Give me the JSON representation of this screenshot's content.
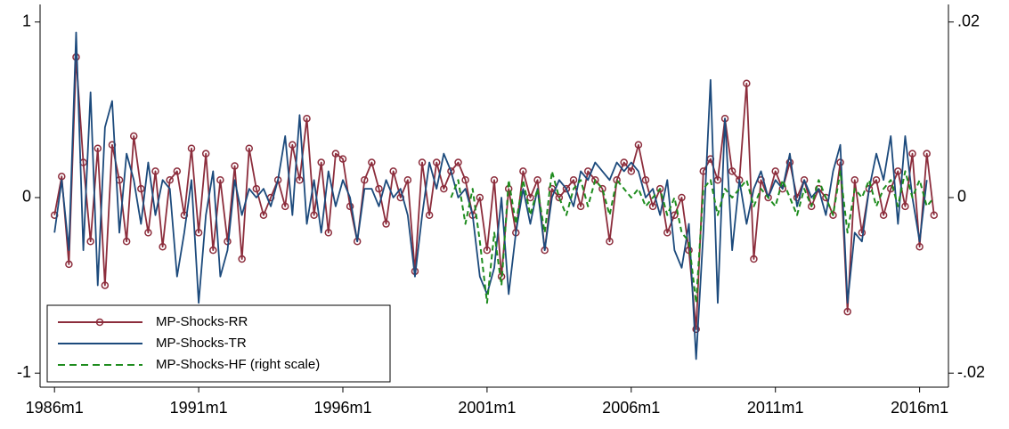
{
  "chart_data": {
    "type": "line",
    "x": [
      1986,
      1986.25,
      1986.5,
      1986.75,
      1987,
      1987.25,
      1987.5,
      1987.75,
      1988,
      1988.25,
      1988.5,
      1988.75,
      1989,
      1989.25,
      1989.5,
      1989.75,
      1990,
      1990.25,
      1990.5,
      1990.75,
      1991,
      1991.25,
      1991.5,
      1991.75,
      1992,
      1992.25,
      1992.5,
      1992.75,
      1993,
      1993.25,
      1993.5,
      1993.75,
      1994,
      1994.25,
      1994.5,
      1994.75,
      1995,
      1995.25,
      1995.5,
      1995.75,
      1996,
      1996.25,
      1996.5,
      1996.75,
      1997,
      1997.25,
      1997.5,
      1997.75,
      1998,
      1998.25,
      1998.5,
      1998.75,
      1999,
      1999.25,
      1999.5,
      1999.75,
      2000,
      2000.25,
      2000.5,
      2000.75,
      2001,
      2001.25,
      2001.5,
      2001.75,
      2002,
      2002.25,
      2002.5,
      2002.75,
      2003,
      2003.25,
      2003.5,
      2003.75,
      2004,
      2004.25,
      2004.5,
      2004.75,
      2005,
      2005.25,
      2005.5,
      2005.75,
      2006,
      2006.25,
      2006.5,
      2006.75,
      2007,
      2007.25,
      2007.5,
      2007.75,
      2008,
      2008.25,
      2008.5,
      2008.75,
      2009,
      2009.25,
      2009.5,
      2009.75,
      2010,
      2010.25,
      2010.5,
      2010.75,
      2011,
      2011.25,
      2011.5,
      2011.75,
      2012,
      2012.25,
      2012.5,
      2012.75,
      2013,
      2013.25,
      2013.5,
      2013.75,
      2014,
      2014.25,
      2014.5,
      2014.75,
      2015,
      2015.25,
      2015.5,
      2015.75,
      2016,
      2016.25,
      2016.5
    ],
    "series": [
      {
        "name": "MP-Shocks-RR",
        "color": "#8c2d3c",
        "marker": "circle",
        "axis": "y",
        "values": [
          -0.1,
          0.12,
          -0.38,
          0.8,
          0.2,
          -0.25,
          0.28,
          -0.5,
          0.3,
          0.1,
          -0.25,
          0.35,
          0.05,
          -0.2,
          0.15,
          -0.28,
          0.1,
          0.15,
          -0.1,
          0.28,
          -0.2,
          0.25,
          -0.3,
          0.1,
          -0.25,
          0.18,
          -0.35,
          0.28,
          0.05,
          -0.1,
          0.0,
          0.1,
          -0.05,
          0.3,
          0.1,
          0.45,
          -0.1,
          0.2,
          -0.2,
          0.25,
          0.22,
          -0.05,
          -0.25,
          0.1,
          0.2,
          0.05,
          -0.15,
          0.15,
          0.0,
          0.1,
          -0.42,
          0.2,
          -0.1,
          0.2,
          0.05,
          0.15,
          0.2,
          0.1,
          -0.1,
          0.0,
          -0.3,
          0.1,
          -0.45,
          0.05,
          -0.2,
          0.15,
          0.0,
          0.1,
          -0.3,
          0.05,
          0.0,
          0.05,
          0.1,
          -0.05,
          0.15,
          0.1,
          0.05,
          -0.25,
          0.1,
          0.2,
          0.15,
          0.3,
          0.1,
          -0.05,
          0.05,
          -0.2,
          -0.1,
          0.0,
          -0.3,
          -0.75,
          0.15,
          0.22,
          0.1,
          0.45,
          0.15,
          0.1,
          0.65,
          -0.35,
          0.1,
          0.0,
          0.15,
          0.05,
          0.2,
          0.0,
          0.1,
          -0.05,
          0.05,
          0.0,
          -0.1,
          0.2,
          -0.65,
          0.1,
          -0.2,
          0.05,
          0.1,
          -0.1,
          0.05,
          0.15,
          -0.05,
          0.25,
          -0.28,
          0.25,
          -0.1
        ]
      },
      {
        "name": "MP-Shocks-TR",
        "color": "#1c4a7c",
        "axis": "y",
        "values": [
          -0.2,
          0.1,
          -0.3,
          0.94,
          -0.3,
          0.6,
          -0.5,
          0.4,
          0.55,
          -0.2,
          0.25,
          0.1,
          -0.15,
          0.2,
          -0.1,
          0.1,
          0.05,
          -0.45,
          -0.2,
          0.1,
          -0.6,
          -0.1,
          0.15,
          -0.45,
          -0.3,
          0.1,
          -0.1,
          0.05,
          0.0,
          0.05,
          -0.05,
          0.1,
          0.35,
          -0.1,
          0.47,
          -0.15,
          0.1,
          -0.2,
          0.15,
          -0.05,
          0.1,
          0.0,
          -0.25,
          0.05,
          0.05,
          -0.05,
          0.1,
          0.0,
          0.05,
          -0.1,
          -0.45,
          -0.1,
          0.2,
          0.05,
          0.25,
          0.15,
          0.0,
          0.05,
          -0.1,
          -0.45,
          -0.55,
          -0.4,
          0.0,
          -0.55,
          -0.2,
          0.05,
          -0.15,
          0.05,
          -0.3,
          0.0,
          0.1,
          0.05,
          -0.05,
          0.15,
          0.1,
          0.2,
          0.15,
          0.1,
          0.2,
          0.15,
          0.2,
          0.15,
          0.0,
          0.05,
          -0.1,
          0.1,
          -0.3,
          -0.4,
          -0.15,
          -0.92,
          -0.2,
          0.67,
          -0.6,
          0.45,
          -0.3,
          0.1,
          -0.15,
          0.05,
          0.15,
          0.0,
          0.1,
          0.05,
          0.25,
          -0.05,
          0.1,
          0.0,
          0.05,
          -0.1,
          0.15,
          0.3,
          -0.6,
          -0.2,
          -0.25,
          0.05,
          0.25,
          0.1,
          0.35,
          -0.15,
          0.35,
          0.0,
          -0.25,
          0.1,
          null
        ]
      },
      {
        "name": "MP-Shocks-HF (right scale)",
        "color": "#1e8c1e",
        "dash": true,
        "axis": "y2",
        "values": [
          null,
          null,
          null,
          null,
          null,
          null,
          null,
          null,
          null,
          null,
          null,
          null,
          null,
          null,
          null,
          null,
          null,
          null,
          null,
          null,
          null,
          null,
          null,
          null,
          null,
          null,
          null,
          null,
          null,
          null,
          null,
          null,
          null,
          null,
          null,
          null,
          null,
          null,
          null,
          null,
          null,
          null,
          null,
          null,
          null,
          null,
          null,
          null,
          null,
          null,
          null,
          null,
          null,
          null,
          null,
          0.0,
          0.002,
          -0.003,
          0.001,
          -0.005,
          -0.012,
          -0.004,
          -0.01,
          0.002,
          -0.003,
          0.002,
          -0.002,
          0.001,
          -0.004,
          0.003,
          0.0,
          -0.002,
          0.001,
          0.002,
          -0.001,
          0.002,
          0.001,
          -0.002,
          0.002,
          0.001,
          0.0,
          0.001,
          -0.001,
          0.0,
          0.001,
          -0.002,
          0.0,
          -0.004,
          -0.005,
          -0.012,
          0.001,
          0.002,
          -0.002,
          0.001,
          0.0,
          0.001,
          0.002,
          -0.001,
          0.001,
          0.0,
          -0.001,
          0.002,
          0.0,
          -0.002,
          0.001,
          -0.001,
          0.002,
          0.0,
          -0.002,
          0.003,
          -0.004,
          0.001,
          0.0,
          0.002,
          -0.001,
          0.001,
          0.002,
          -0.001,
          0.003,
          0.0,
          0.002,
          -0.001,
          0.0
        ]
      }
    ],
    "xlim": [
      1985.5,
      2017
    ],
    "xticks": [
      {
        "value": 1986,
        "label": "1986m1"
      },
      {
        "value": 1991,
        "label": "1991m1"
      },
      {
        "value": 1996,
        "label": "1996m1"
      },
      {
        "value": 2001,
        "label": "2001m1"
      },
      {
        "value": 2006,
        "label": "2006m1"
      },
      {
        "value": 2011,
        "label": "2011m1"
      },
      {
        "value": 2016,
        "label": "2016m1"
      }
    ],
    "ylim": [
      -1.08,
      1.1
    ],
    "yticks": [
      -1,
      0,
      1
    ],
    "y2lim": [
      -0.0216,
      0.022
    ],
    "y2ticks": [
      {
        "value": -0.02,
        "label": "-.02"
      },
      0,
      {
        "value": 0.02,
        "label": ".02"
      }
    ],
    "grid": false,
    "legend": "lower left"
  }
}
